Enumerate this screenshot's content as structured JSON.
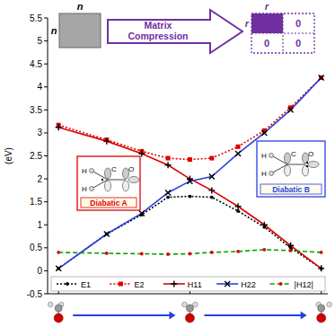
{
  "chart_data": {
    "type": "line",
    "y_label": "(eV)",
    "x": [
      0,
      1.1,
      1.9,
      2.5,
      3.0,
      3.5,
      4.1,
      4.7,
      5.3,
      6.0
    ],
    "xlim": [
      -0.25,
      6.15
    ],
    "xticks": [
      0,
      3,
      6
    ],
    "ylim": [
      -0.5,
      5.5
    ],
    "yticks": [
      -0.5,
      0,
      0.5,
      1,
      1.5,
      2,
      2.5,
      3,
      3.5,
      4,
      4.5,
      5,
      5.5
    ],
    "tick_labels": "y",
    "legend": "bottom",
    "series": [
      {
        "name": "E1",
        "color": "#000000",
        "line_style": "dotted",
        "marker": "circle",
        "values": [
          0.05,
          0.8,
          1.22,
          1.6,
          1.62,
          1.6,
          1.3,
          0.95,
          0.5,
          0.05
        ]
      },
      {
        "name": "E2",
        "color": "#e00000",
        "line_style": "dotted",
        "marker": "square",
        "values": [
          3.17,
          2.85,
          2.6,
          2.45,
          2.42,
          2.45,
          2.7,
          3.05,
          3.55,
          4.2
        ]
      },
      {
        "name": "H11",
        "color": "#e00000",
        "line_style": "solid",
        "marker": "plus",
        "values": [
          3.12,
          2.82,
          2.55,
          2.3,
          2.0,
          1.75,
          1.4,
          1.0,
          0.55,
          0.05
        ]
      },
      {
        "name": "H22",
        "color": "#2a3fe0",
        "line_style": "solid",
        "marker": "cross",
        "values": [
          0.05,
          0.8,
          1.25,
          1.7,
          1.95,
          2.05,
          2.55,
          3.0,
          3.5,
          4.2
        ]
      },
      {
        "name": "|H12|",
        "color": "#00a000",
        "line_style": "dashed",
        "marker": "dot",
        "values": [
          0.4,
          0.38,
          0.37,
          0.36,
          0.37,
          0.4,
          0.42,
          0.46,
          0.44,
          0.4
        ]
      }
    ],
    "annotations": {
      "matrix_size": "n",
      "compression": "Matrix Compression",
      "rank": "r",
      "zero": "0",
      "diabatic_a": "Diabatic A",
      "diabatic_b": "Diabatic B",
      "atoms": [
        "H",
        "C",
        "O",
        "H"
      ]
    }
  }
}
